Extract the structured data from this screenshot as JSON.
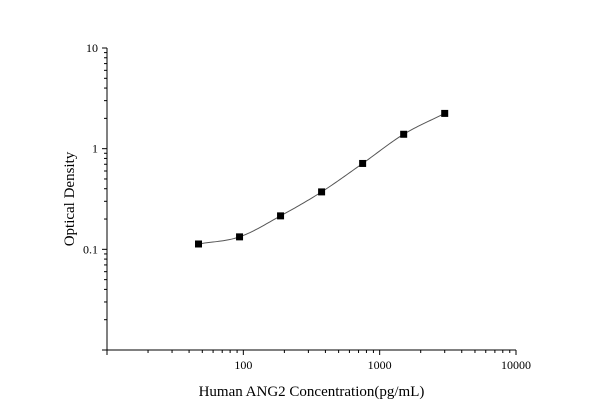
{
  "chart_data": {
    "type": "scatter",
    "title": "",
    "xlabel": "Human ANG2 Concentration(pg/mL)",
    "ylabel": "Optical Density",
    "x_scale": "log",
    "y_scale": "log",
    "xlim": [
      10,
      10000
    ],
    "ylim": [
      0.01,
      10
    ],
    "x_ticks": [
      {
        "value": 100,
        "label": "100"
      },
      {
        "value": 1000,
        "label": "1000"
      },
      {
        "value": 10000,
        "label": "10000"
      }
    ],
    "y_ticks": [
      {
        "value": 0.1,
        "label": "0.1"
      },
      {
        "value": 1,
        "label": "1"
      },
      {
        "value": 10,
        "label": "10"
      }
    ],
    "grid": false,
    "series": [
      {
        "marker": "square",
        "color": "#000000",
        "points": [
          {
            "x": 46.9,
            "y": 0.113
          },
          {
            "x": 93.8,
            "y": 0.133
          },
          {
            "x": 187.5,
            "y": 0.215
          },
          {
            "x": 375,
            "y": 0.372
          },
          {
            "x": 750,
            "y": 0.713
          },
          {
            "x": 1500,
            "y": 1.39
          },
          {
            "x": 3000,
            "y": 2.24
          }
        ]
      }
    ],
    "fit_curve": {
      "color": "#555555",
      "style": "solid"
    }
  }
}
